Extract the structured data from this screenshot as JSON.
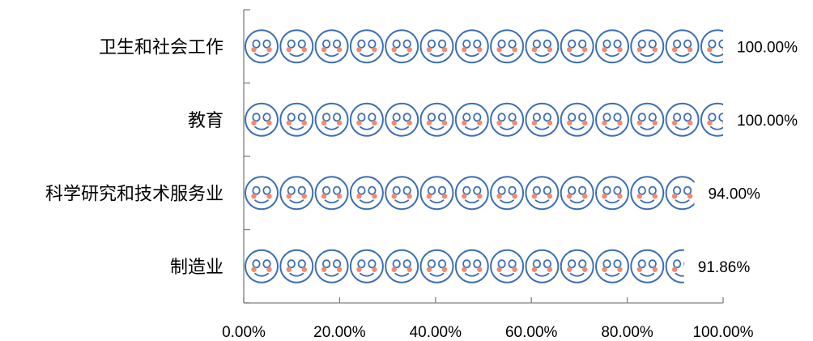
{
  "chart_data": {
    "type": "bar",
    "orientation": "horizontal",
    "categories": [
      "卫生和社会工作",
      "教育",
      "科学研究和技术服务业",
      "制造业"
    ],
    "values": [
      1.0,
      1.0,
      0.94,
      0.9186
    ],
    "data_labels": [
      "100.00%",
      "100.00%",
      "94.00%",
      "91.86%"
    ],
    "x_ticks": [
      "0.00%",
      "20.00%",
      "40.00%",
      "60.00%",
      "80.00%",
      "100.00%"
    ],
    "xlim": [
      0,
      1
    ],
    "grid": false,
    "legend": "none",
    "bar_fill": "smiley-pictograph",
    "colors": {
      "face_outline": "#3B6FB5",
      "cheeks": "#F5896B",
      "axis": "#808080"
    }
  }
}
